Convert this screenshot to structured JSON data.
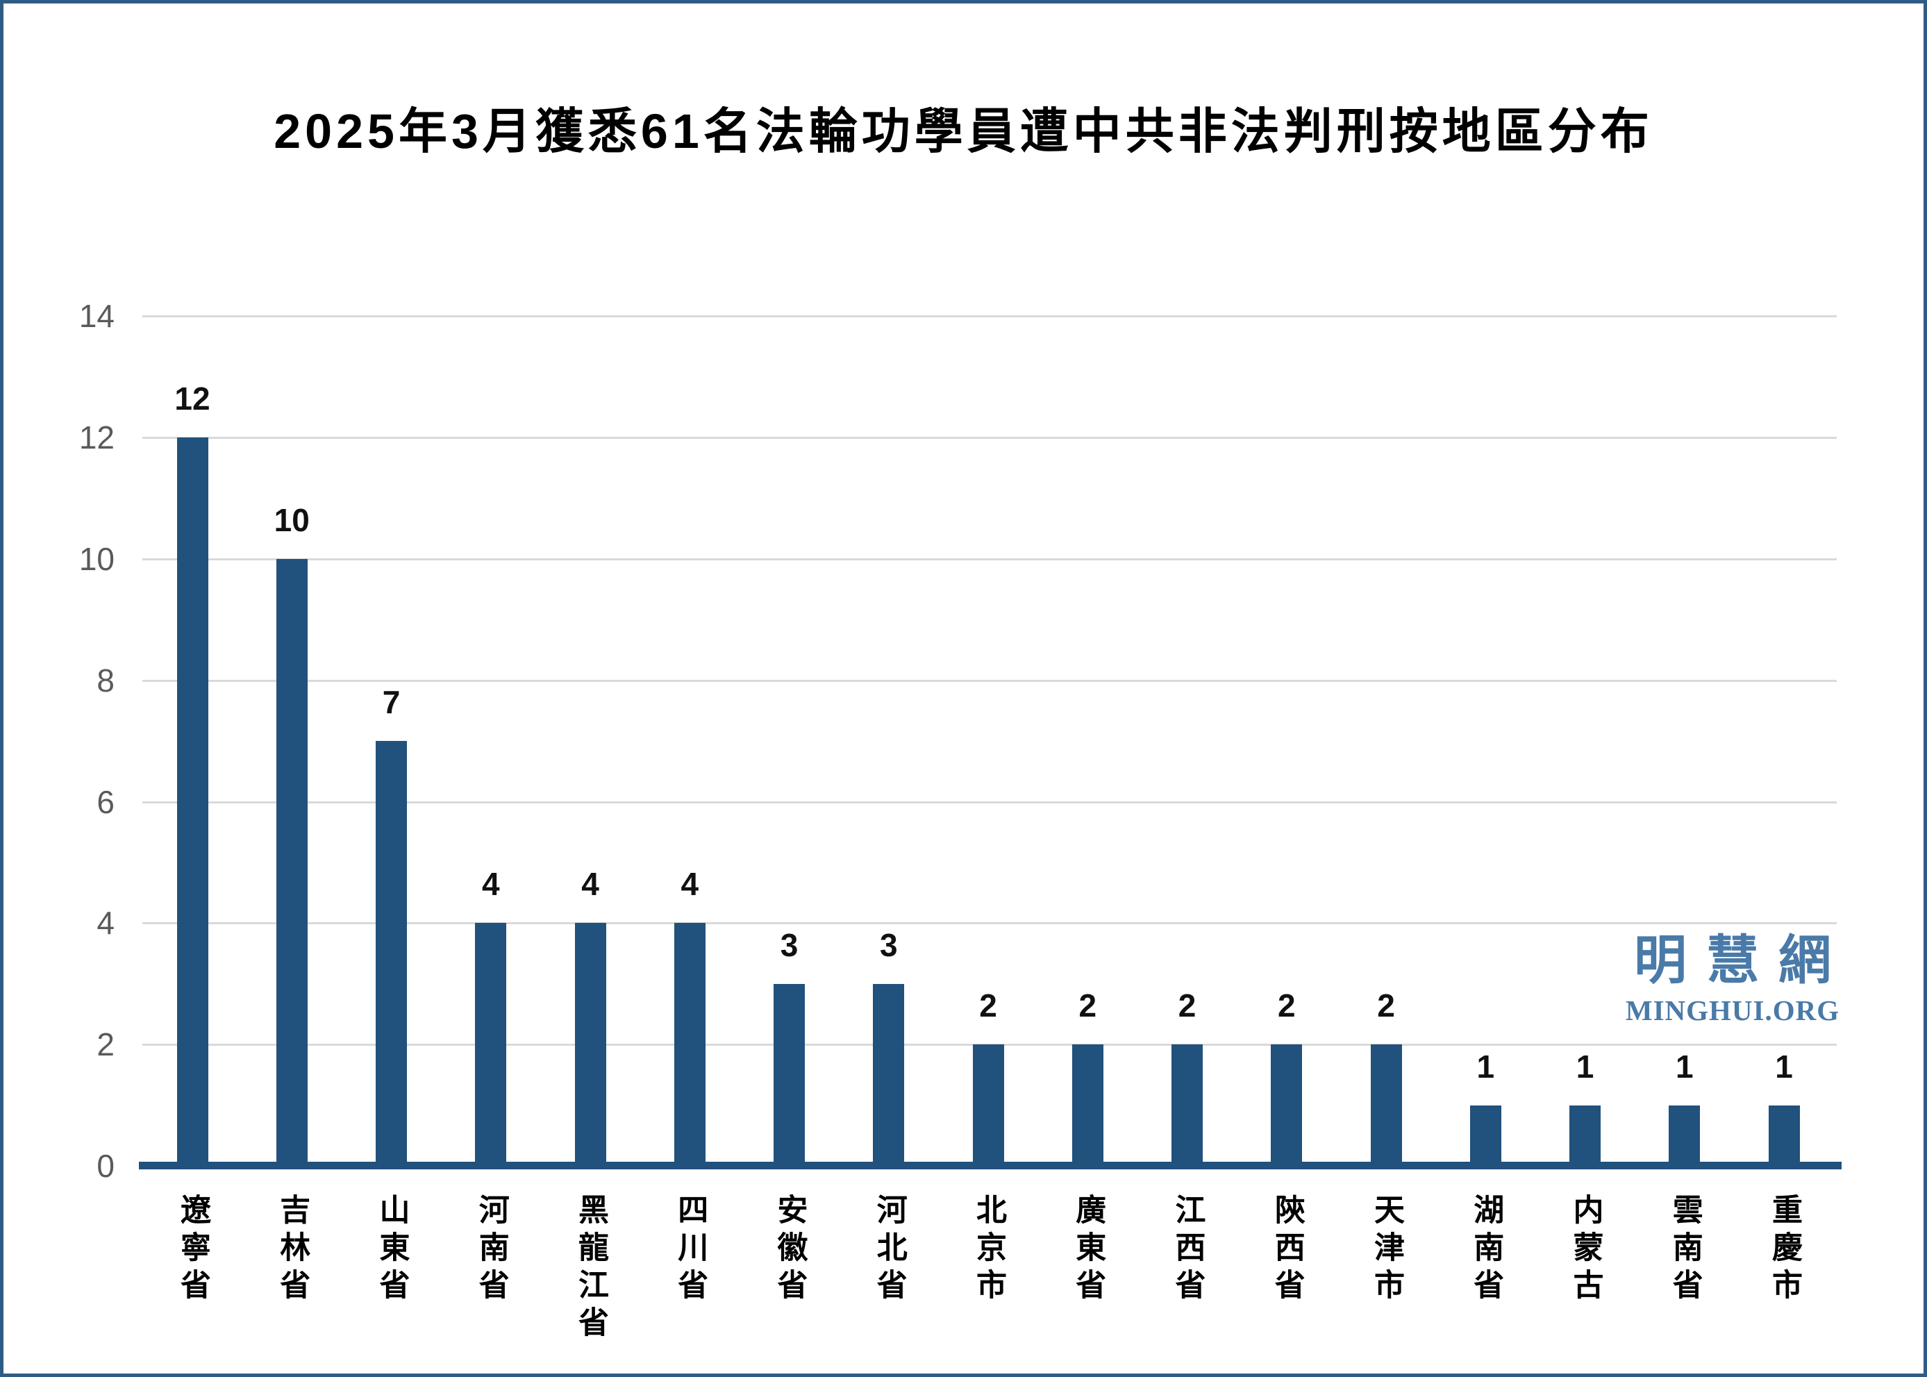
{
  "title": "2025年3月獲悉61名法輪功學員遭中共非法判刑按地區分布",
  "watermark": {
    "cjk": "明慧網",
    "latin": "MINGHUI.ORG",
    "color": "#4A7AA8"
  },
  "colors": {
    "bar": "#21517D",
    "axis_line": "#21517D",
    "gridline": "#D9D9D9",
    "tick_label": "#5A5A5A",
    "value_label": "#111111",
    "frame_border": "#2F5C86",
    "background": "#FFFFFF"
  },
  "chart_data": {
    "type": "bar",
    "title": "2025年3月獲悉61名法輪功學員遭中共非法判刑按地區分布",
    "categories": [
      "遼寧省",
      "吉林省",
      "山東省",
      "河南省",
      "黑龍江省",
      "四川省",
      "安徽省",
      "河北省",
      "北京市",
      "廣東省",
      "江西省",
      "陝西省",
      "天津市",
      "湖南省",
      "内蒙古",
      "雲南省",
      "重慶市"
    ],
    "values": [
      12,
      10,
      7,
      4,
      4,
      4,
      3,
      3,
      2,
      2,
      2,
      2,
      2,
      1,
      1,
      1,
      1
    ],
    "total": 61,
    "xlabel": "",
    "ylabel": "",
    "ylim": [
      0,
      14
    ],
    "yticks": [
      0,
      2,
      4,
      6,
      8,
      10,
      12,
      14
    ],
    "grid": "horizontal-light-gray",
    "legend": "none",
    "bar_color": "#21517D",
    "value_labels_shown": true
  }
}
